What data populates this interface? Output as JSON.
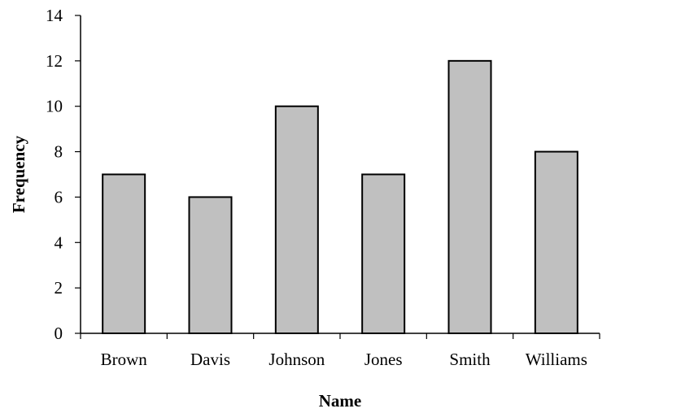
{
  "chart_data": {
    "type": "bar",
    "title": "",
    "xlabel": "Name",
    "ylabel": "Frequency",
    "categories": [
      "Brown",
      "Davis",
      "Johnson",
      "Jones",
      "Smith",
      "Williams"
    ],
    "values": [
      7,
      6,
      10,
      7,
      12,
      8
    ],
    "ylim": [
      0,
      14
    ],
    "yticks": [
      "0",
      "2",
      "4",
      "6",
      "8",
      "10",
      "12",
      "14"
    ],
    "grid": false,
    "legend": "none",
    "bar_color": "#c0c0c0",
    "bar_edge_color": "#000000"
  }
}
